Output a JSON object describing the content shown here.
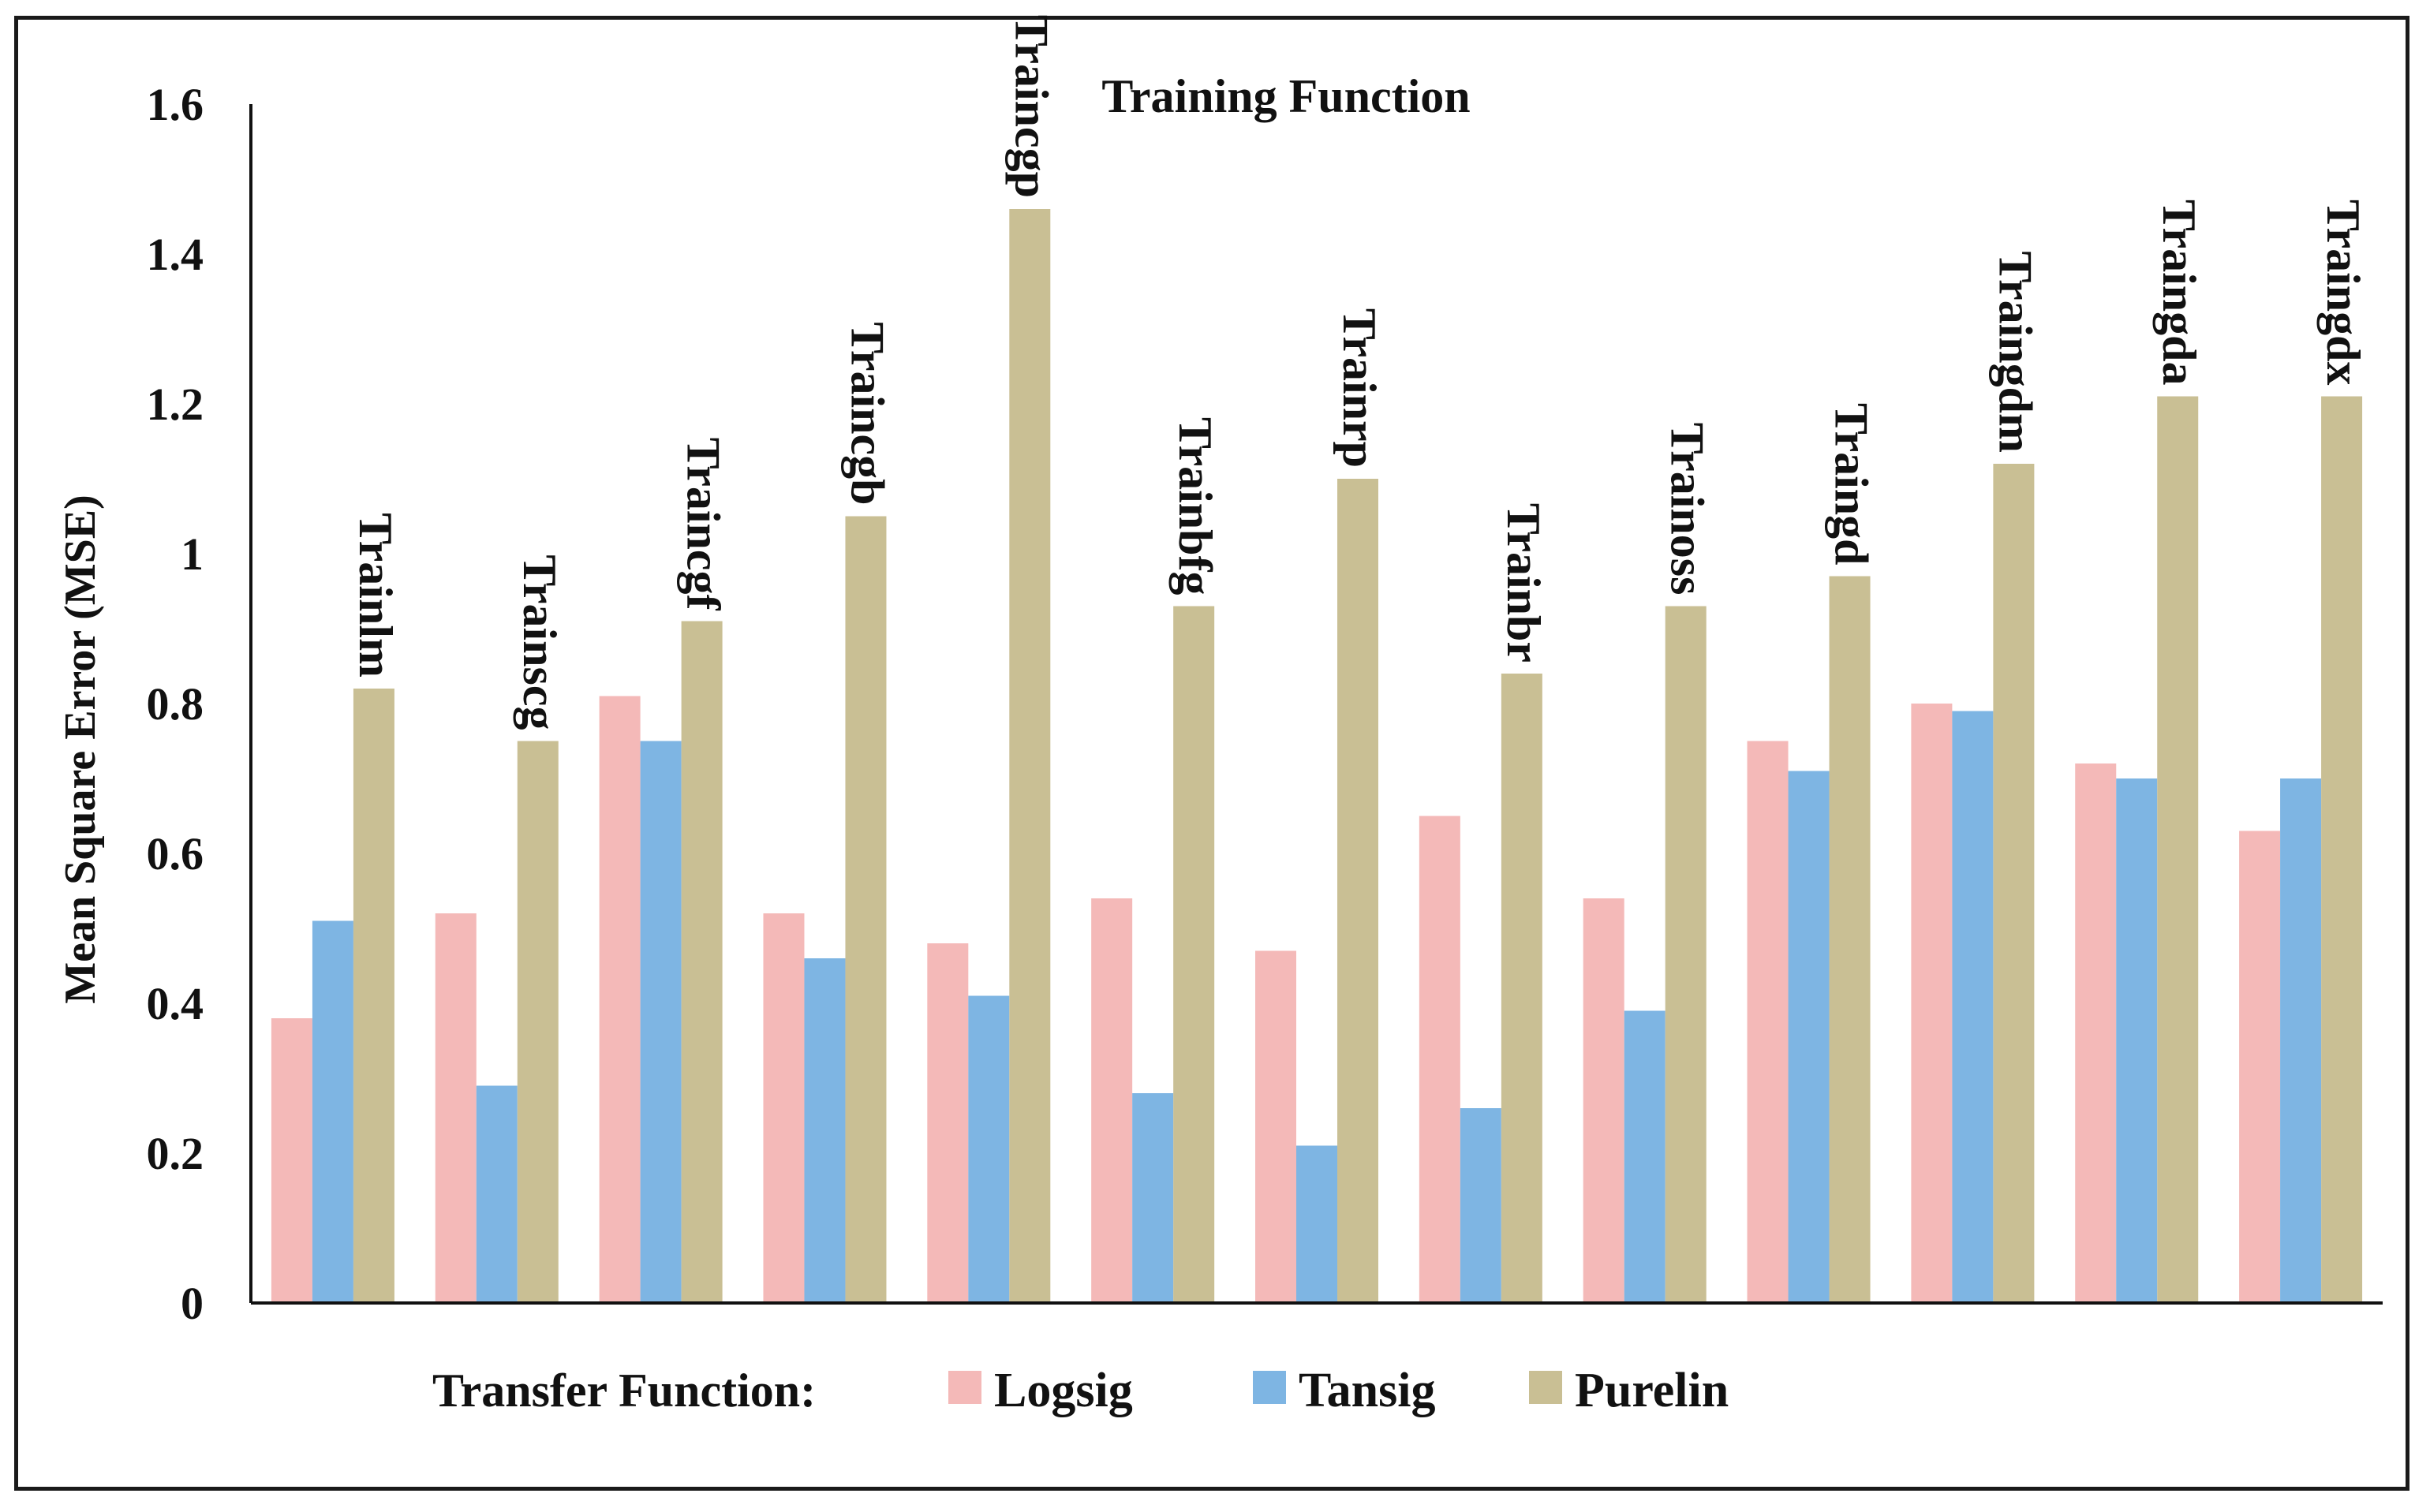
{
  "chart_data": {
    "type": "bar",
    "title": "Training Function",
    "ylabel": "Mean Square Error (MSE)",
    "xlabel": "",
    "ylim": [
      0,
      1.6
    ],
    "yticks": [
      "0",
      "0.2",
      "0.4",
      "0.6",
      "0.8",
      "1",
      "1.2",
      "1.4",
      "1.6"
    ],
    "categories": [
      "Trainlm",
      "Trainscg",
      "Traincgf",
      "Traincgb",
      "Traincgp",
      "Trainbfg",
      "Trainrp",
      "Trainbr",
      "Trainoss",
      "Traingd",
      "Traingdm",
      "Traingda",
      "Traingdx"
    ],
    "series": [
      {
        "name": "Logsig",
        "color": "#f4b9b8",
        "values": [
          0.38,
          0.52,
          0.81,
          0.52,
          0.48,
          0.54,
          0.47,
          0.65,
          0.54,
          0.75,
          0.8,
          0.72,
          0.63
        ]
      },
      {
        "name": "Tansig",
        "color": "#7eb5e3",
        "values": [
          0.51,
          0.29,
          0.75,
          0.46,
          0.41,
          0.28,
          0.21,
          0.26,
          0.39,
          0.71,
          0.79,
          0.7,
          0.7
        ]
      },
      {
        "name": "Purelin",
        "color": "#c9bf94",
        "values": [
          0.82,
          0.75,
          0.91,
          1.05,
          1.46,
          0.93,
          1.1,
          0.84,
          0.93,
          0.97,
          1.12,
          1.21,
          1.21
        ]
      }
    ],
    "legend": {
      "title": "Transfer Function:",
      "placement": "bottom"
    },
    "grid": false
  }
}
